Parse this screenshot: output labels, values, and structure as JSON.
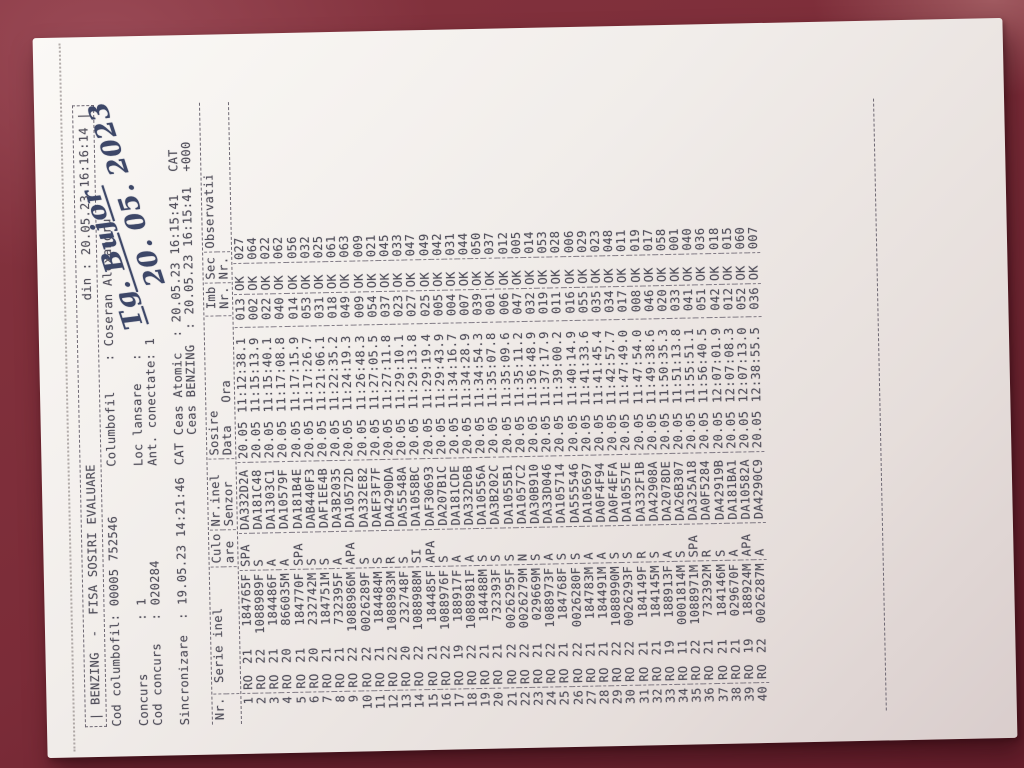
{
  "colors": {
    "background_base": "#7b2c38",
    "background_light": "#9a4a56",
    "background_dark": "#671f2c",
    "paper_light": "#fbf9f6",
    "paper_shadow": "#d9cdcc",
    "print_ink": "#514f5b",
    "pen_ink": "#3d4768"
  },
  "report": {
    "title": "| BENZING  -  FISA SOSIRI EVALUARE",
    "printed": "din : 20.05.23 16:16:14 |",
    "info": [
      {
        "left": "Cod columbofil: 00005 752546",
        "right": "Columbofil    : Coseran Alexandru"
      },
      {
        "left": "",
        "right": ""
      },
      {
        "left": "Concurs       : 1",
        "right": "Loc lansare   :"
      },
      {
        "left": "Cod concurs   : 020284",
        "right": "Ant. conectate: 1"
      },
      {
        "left": "",
        "right": ""
      },
      {
        "left": "Sincronizare  : 19.05.23 14:21:46",
        "right": "CAT Ceas Atomic  : 20.05.23 16:15:41   CAT"
      },
      {
        "left": "",
        "right": "    Ceas BENZING  : 20.05.23 16:15:41  +000"
      }
    ]
  },
  "handwriting": {
    "line1": "Tg. Bujor",
    "line2": "20. 05. 2023"
  },
  "table": {
    "headers": {
      "nr": {
        "l1": "Nr.",
        "l2": ""
      },
      "serie": {
        "l1": " Serie inel",
        "l2": ""
      },
      "culoare": {
        "l1": "Culo",
        "l2": "are"
      },
      "senzor": {
        "l1": "Nr.inel",
        "l2": "Senzor"
      },
      "sosire": {
        "l1": "Sosire",
        "l2": "Data   Ora"
      },
      "imb": {
        "l1": "Imb",
        "l2": "Nr."
      },
      "sec": {
        "l1": "Sec",
        "l2": "Nr."
      },
      "obs": {
        "l1": "Observatii",
        "l2": ""
      }
    },
    "rows": [
      {
        "nr": "1",
        "ro": "RO",
        "an": "21",
        "serie": "184765F",
        "culoare": "SPA",
        "senzor": "DA332D2A",
        "data": "20.05",
        "ora": "11:12:38.1",
        "imb": "013",
        "stare": "OK",
        "obs": "027"
      },
      {
        "nr": "2",
        "ro": "RO",
        "an": "22",
        "serie": "1088989F",
        "culoare": "S",
        "senzor": "DA181C48",
        "data": "20.05",
        "ora": "11:15:13.9",
        "imb": "002",
        "stare": "OK",
        "obs": "064"
      },
      {
        "nr": "3",
        "ro": "RO",
        "an": "21",
        "serie": "184486F",
        "culoare": "A",
        "senzor": "DA1303C1",
        "data": "20.05",
        "ora": "11:15:40.1",
        "imb": "022",
        "stare": "OK",
        "obs": "022"
      },
      {
        "nr": "4",
        "ro": "RO",
        "an": "20",
        "serie": "866035M",
        "culoare": "A",
        "senzor": "DA10579F",
        "data": "20.05",
        "ora": "11:17:08.8",
        "imb": "040",
        "stare": "OK",
        "obs": "062"
      },
      {
        "nr": "5",
        "ro": "RO",
        "an": "21",
        "serie": "184770F",
        "culoare": "SPA",
        "senzor": "DA181B4E",
        "data": "20.05",
        "ora": "11:17:15.9",
        "imb": "014",
        "stare": "OK",
        "obs": "056"
      },
      {
        "nr": "6",
        "ro": "RO",
        "an": "20",
        "serie": "232742M",
        "culoare": "S",
        "senzor": "DAB440F3",
        "data": "20.05",
        "ora": "11:17:26.7",
        "imb": "053",
        "stare": "OK",
        "obs": "032"
      },
      {
        "nr": "7",
        "ro": "RO",
        "an": "21",
        "serie": "184751M",
        "culoare": "S",
        "senzor": "DAF1EE4B",
        "data": "20.05",
        "ora": "11:21:06.1",
        "imb": "031",
        "stare": "OK",
        "obs": "025"
      },
      {
        "nr": "8",
        "ro": "RO",
        "an": "21",
        "serie": "732395F",
        "culoare": "A",
        "senzor": "DA3B2035",
        "data": "20.05",
        "ora": "11:22:35.2",
        "imb": "018",
        "stare": "OK",
        "obs": "061"
      },
      {
        "nr": "9",
        "ro": "RO",
        "an": "22",
        "serie": "1088986M",
        "culoare": "APA",
        "senzor": "DA10572D",
        "data": "20.05",
        "ora": "11:24:19.3",
        "imb": "049",
        "stare": "OK",
        "obs": "063"
      },
      {
        "nr": "10",
        "ro": "RO",
        "an": "22",
        "serie": "0026289F",
        "culoare": "S",
        "senzor": "DA332E82",
        "data": "20.05",
        "ora": "11:26:48.3",
        "imb": "009",
        "stare": "OK",
        "obs": "009"
      },
      {
        "nr": "11",
        "ro": "RO",
        "an": "21",
        "serie": "184484M",
        "culoare": "S",
        "senzor": "DAEF3F7F",
        "data": "20.05",
        "ora": "11:27:05.5",
        "imb": "054",
        "stare": "OK",
        "obs": "021"
      },
      {
        "nr": "12",
        "ro": "RO",
        "an": "22",
        "serie": "1088983M",
        "culoare": "R",
        "senzor": "DA4290DA",
        "data": "20.05",
        "ora": "11:27:11.8",
        "imb": "037",
        "stare": "OK",
        "obs": "045"
      },
      {
        "nr": "13",
        "ro": "RO",
        "an": "20",
        "serie": "232748F",
        "culoare": "S",
        "senzor": "DA55548A",
        "data": "20.05",
        "ora": "11:29:10.1",
        "imb": "023",
        "stare": "OK",
        "obs": "033"
      },
      {
        "nr": "14",
        "ro": "RO",
        "an": "22",
        "serie": "1088988M",
        "culoare": "SI",
        "senzor": "DA1058BC",
        "data": "20.05",
        "ora": "11:29:13.8",
        "imb": "027",
        "stare": "OK",
        "obs": "047"
      },
      {
        "nr": "15",
        "ro": "RO",
        "an": "21",
        "serie": "184485F",
        "culoare": "APA",
        "senzor": "DAF30693",
        "data": "20.05",
        "ora": "11:29:19.4",
        "imb": "025",
        "stare": "OK",
        "obs": "049"
      },
      {
        "nr": "16",
        "ro": "RO",
        "an": "22",
        "serie": "1088976F",
        "culoare": "S",
        "senzor": "DA207B1C",
        "data": "20.05",
        "ora": "11:29:43.9",
        "imb": "005",
        "stare": "OK",
        "obs": "042"
      },
      {
        "nr": "17",
        "ro": "RO",
        "an": "19",
        "serie": "188917F",
        "culoare": "A",
        "senzor": "DA181CDE",
        "data": "20.05",
        "ora": "11:34:16.7",
        "imb": "004",
        "stare": "OK",
        "obs": "031"
      },
      {
        "nr": "18",
        "ro": "RO",
        "an": "22",
        "serie": "1088981F",
        "culoare": "A",
        "senzor": "DA332D6B",
        "data": "20.05",
        "ora": "11:34:28.9",
        "imb": "007",
        "stare": "OK",
        "obs": "044"
      },
      {
        "nr": "19",
        "ro": "RO",
        "an": "21",
        "serie": "184488M",
        "culoare": "S",
        "senzor": "DA10556A",
        "data": "20.05",
        "ora": "11:34:54.3",
        "imb": "039",
        "stare": "OK",
        "obs": "050"
      },
      {
        "nr": "20",
        "ro": "RO",
        "an": "21",
        "serie": "732393F",
        "culoare": "S",
        "senzor": "DA3B202C",
        "data": "20.05",
        "ora": "11:35:07.8",
        "imb": "001",
        "stare": "OK",
        "obs": "037"
      },
      {
        "nr": "21",
        "ro": "RO",
        "an": "22",
        "serie": "0026295F",
        "culoare": "S",
        "senzor": "DA1055B1",
        "data": "20.05",
        "ora": "11:35:09.6",
        "imb": "006",
        "stare": "OK",
        "obs": "012"
      },
      {
        "nr": "22",
        "ro": "RO",
        "an": "22",
        "serie": "0026279M",
        "culoare": "N",
        "senzor": "DA1057C2",
        "data": "20.05",
        "ora": "11:35:11.2",
        "imb": "047",
        "stare": "OK",
        "obs": "005"
      },
      {
        "nr": "23",
        "ro": "RO",
        "an": "21",
        "serie": "029669M",
        "culoare": "S",
        "senzor": "DA30B910",
        "data": "20.05",
        "ora": "11:36:48.9",
        "imb": "032",
        "stare": "OK",
        "obs": "014"
      },
      {
        "nr": "24",
        "ro": "RO",
        "an": "22",
        "serie": "1088973F",
        "culoare": "A",
        "senzor": "DA33D046",
        "data": "20.05",
        "ora": "11:37:17.9",
        "imb": "019",
        "stare": "OK",
        "obs": "053"
      },
      {
        "nr": "25",
        "ro": "RO",
        "an": "21",
        "serie": "184768F",
        "culoare": "S",
        "senzor": "DA105714",
        "data": "20.05",
        "ora": "11:39:00.2",
        "imb": "011",
        "stare": "OK",
        "obs": "028"
      },
      {
        "nr": "26",
        "ro": "RO",
        "an": "22",
        "serie": "0026280F",
        "culoare": "S",
        "senzor": "DA555546",
        "data": "20.05",
        "ora": "11:40:14.9",
        "imb": "016",
        "stare": "OK",
        "obs": "006"
      },
      {
        "nr": "27",
        "ro": "RO",
        "an": "21",
        "serie": "184783M",
        "culoare": "A",
        "senzor": "DA105697",
        "data": "20.05",
        "ora": "11:41:33.6",
        "imb": "055",
        "stare": "OK",
        "obs": "029"
      },
      {
        "nr": "28",
        "ro": "RO",
        "an": "21",
        "serie": "184491M",
        "culoare": "A",
        "senzor": "DA0F4F94",
        "data": "20.05",
        "ora": "11:41:45.4",
        "imb": "035",
        "stare": "OK",
        "obs": "023"
      },
      {
        "nr": "29",
        "ro": "RO",
        "an": "22",
        "serie": "1088990M",
        "culoare": "S",
        "senzor": "DA0F4EFA",
        "data": "20.05",
        "ora": "11:42:57.7",
        "imb": "034",
        "stare": "OK",
        "obs": "048"
      },
      {
        "nr": "30",
        "ro": "RO",
        "an": "22",
        "serie": "0026293F",
        "culoare": "S",
        "senzor": "DA10557E",
        "data": "20.05",
        "ora": "11:47:49.0",
        "imb": "017",
        "stare": "OK",
        "obs": "011"
      },
      {
        "nr": "31",
        "ro": "RO",
        "an": "21",
        "serie": "184149F",
        "culoare": "R",
        "senzor": "DA332F1B",
        "data": "20.05",
        "ora": "11:47:54.0",
        "imb": "008",
        "stare": "OK",
        "obs": "019"
      },
      {
        "nr": "32",
        "ro": "RO",
        "an": "21",
        "serie": "184145M",
        "culoare": "S",
        "senzor": "DA42908A",
        "data": "20.05",
        "ora": "11:49:38.6",
        "imb": "046",
        "stare": "OK",
        "obs": "017"
      },
      {
        "nr": "33",
        "ro": "RO",
        "an": "19",
        "serie": "188913F",
        "culoare": "A",
        "senzor": "DA2078DE",
        "data": "20.05",
        "ora": "11:50:35.3",
        "imb": "020",
        "stare": "OK",
        "obs": "058"
      },
      {
        "nr": "34",
        "ro": "RO",
        "an": "11",
        "serie": "0001814M",
        "culoare": "S",
        "senzor": "DA26B307",
        "data": "20.05",
        "ora": "11:51:13.8",
        "imb": "033",
        "stare": "OK",
        "obs": "001"
      },
      {
        "nr": "35",
        "ro": "RO",
        "an": "22",
        "serie": "1088971M",
        "culoare": "SPA",
        "senzor": "DA325A18",
        "data": "20.05",
        "ora": "11:55:51.1",
        "imb": "041",
        "stare": "OK",
        "obs": "040"
      },
      {
        "nr": "36",
        "ro": "RO",
        "an": "21",
        "serie": "732392M",
        "culoare": "R",
        "senzor": "DA0F5284",
        "data": "20.05",
        "ora": "11:56:40.5",
        "imb": "051",
        "stare": "OK",
        "obs": "036"
      },
      {
        "nr": "37",
        "ro": "RO",
        "an": "21",
        "serie": "184146M",
        "culoare": "S",
        "senzor": "DA42919B",
        "data": "20.05",
        "ora": "12:07:01.9",
        "imb": "042",
        "stare": "OK",
        "obs": "018"
      },
      {
        "nr": "38",
        "ro": "RO",
        "an": "21",
        "serie": "029670F",
        "culoare": "A",
        "senzor": "DA181BA1",
        "data": "20.05",
        "ora": "12:07:08.3",
        "imb": "012",
        "stare": "OK",
        "obs": "015"
      },
      {
        "nr": "39",
        "ro": "RO",
        "an": "19",
        "serie": "188924M",
        "culoare": "APA",
        "senzor": "DA10582A",
        "data": "20.05",
        "ora": "12:07:13.0",
        "imb": "052",
        "stare": "OK",
        "obs": "060"
      },
      {
        "nr": "40",
        "ro": "RO",
        "an": "22",
        "serie": "0026287M",
        "culoare": "A",
        "senzor": "DA4290C9",
        "data": "20.05",
        "ora": "12:38:55.5",
        "imb": "036",
        "stare": "OK",
        "obs": "007"
      }
    ]
  }
}
